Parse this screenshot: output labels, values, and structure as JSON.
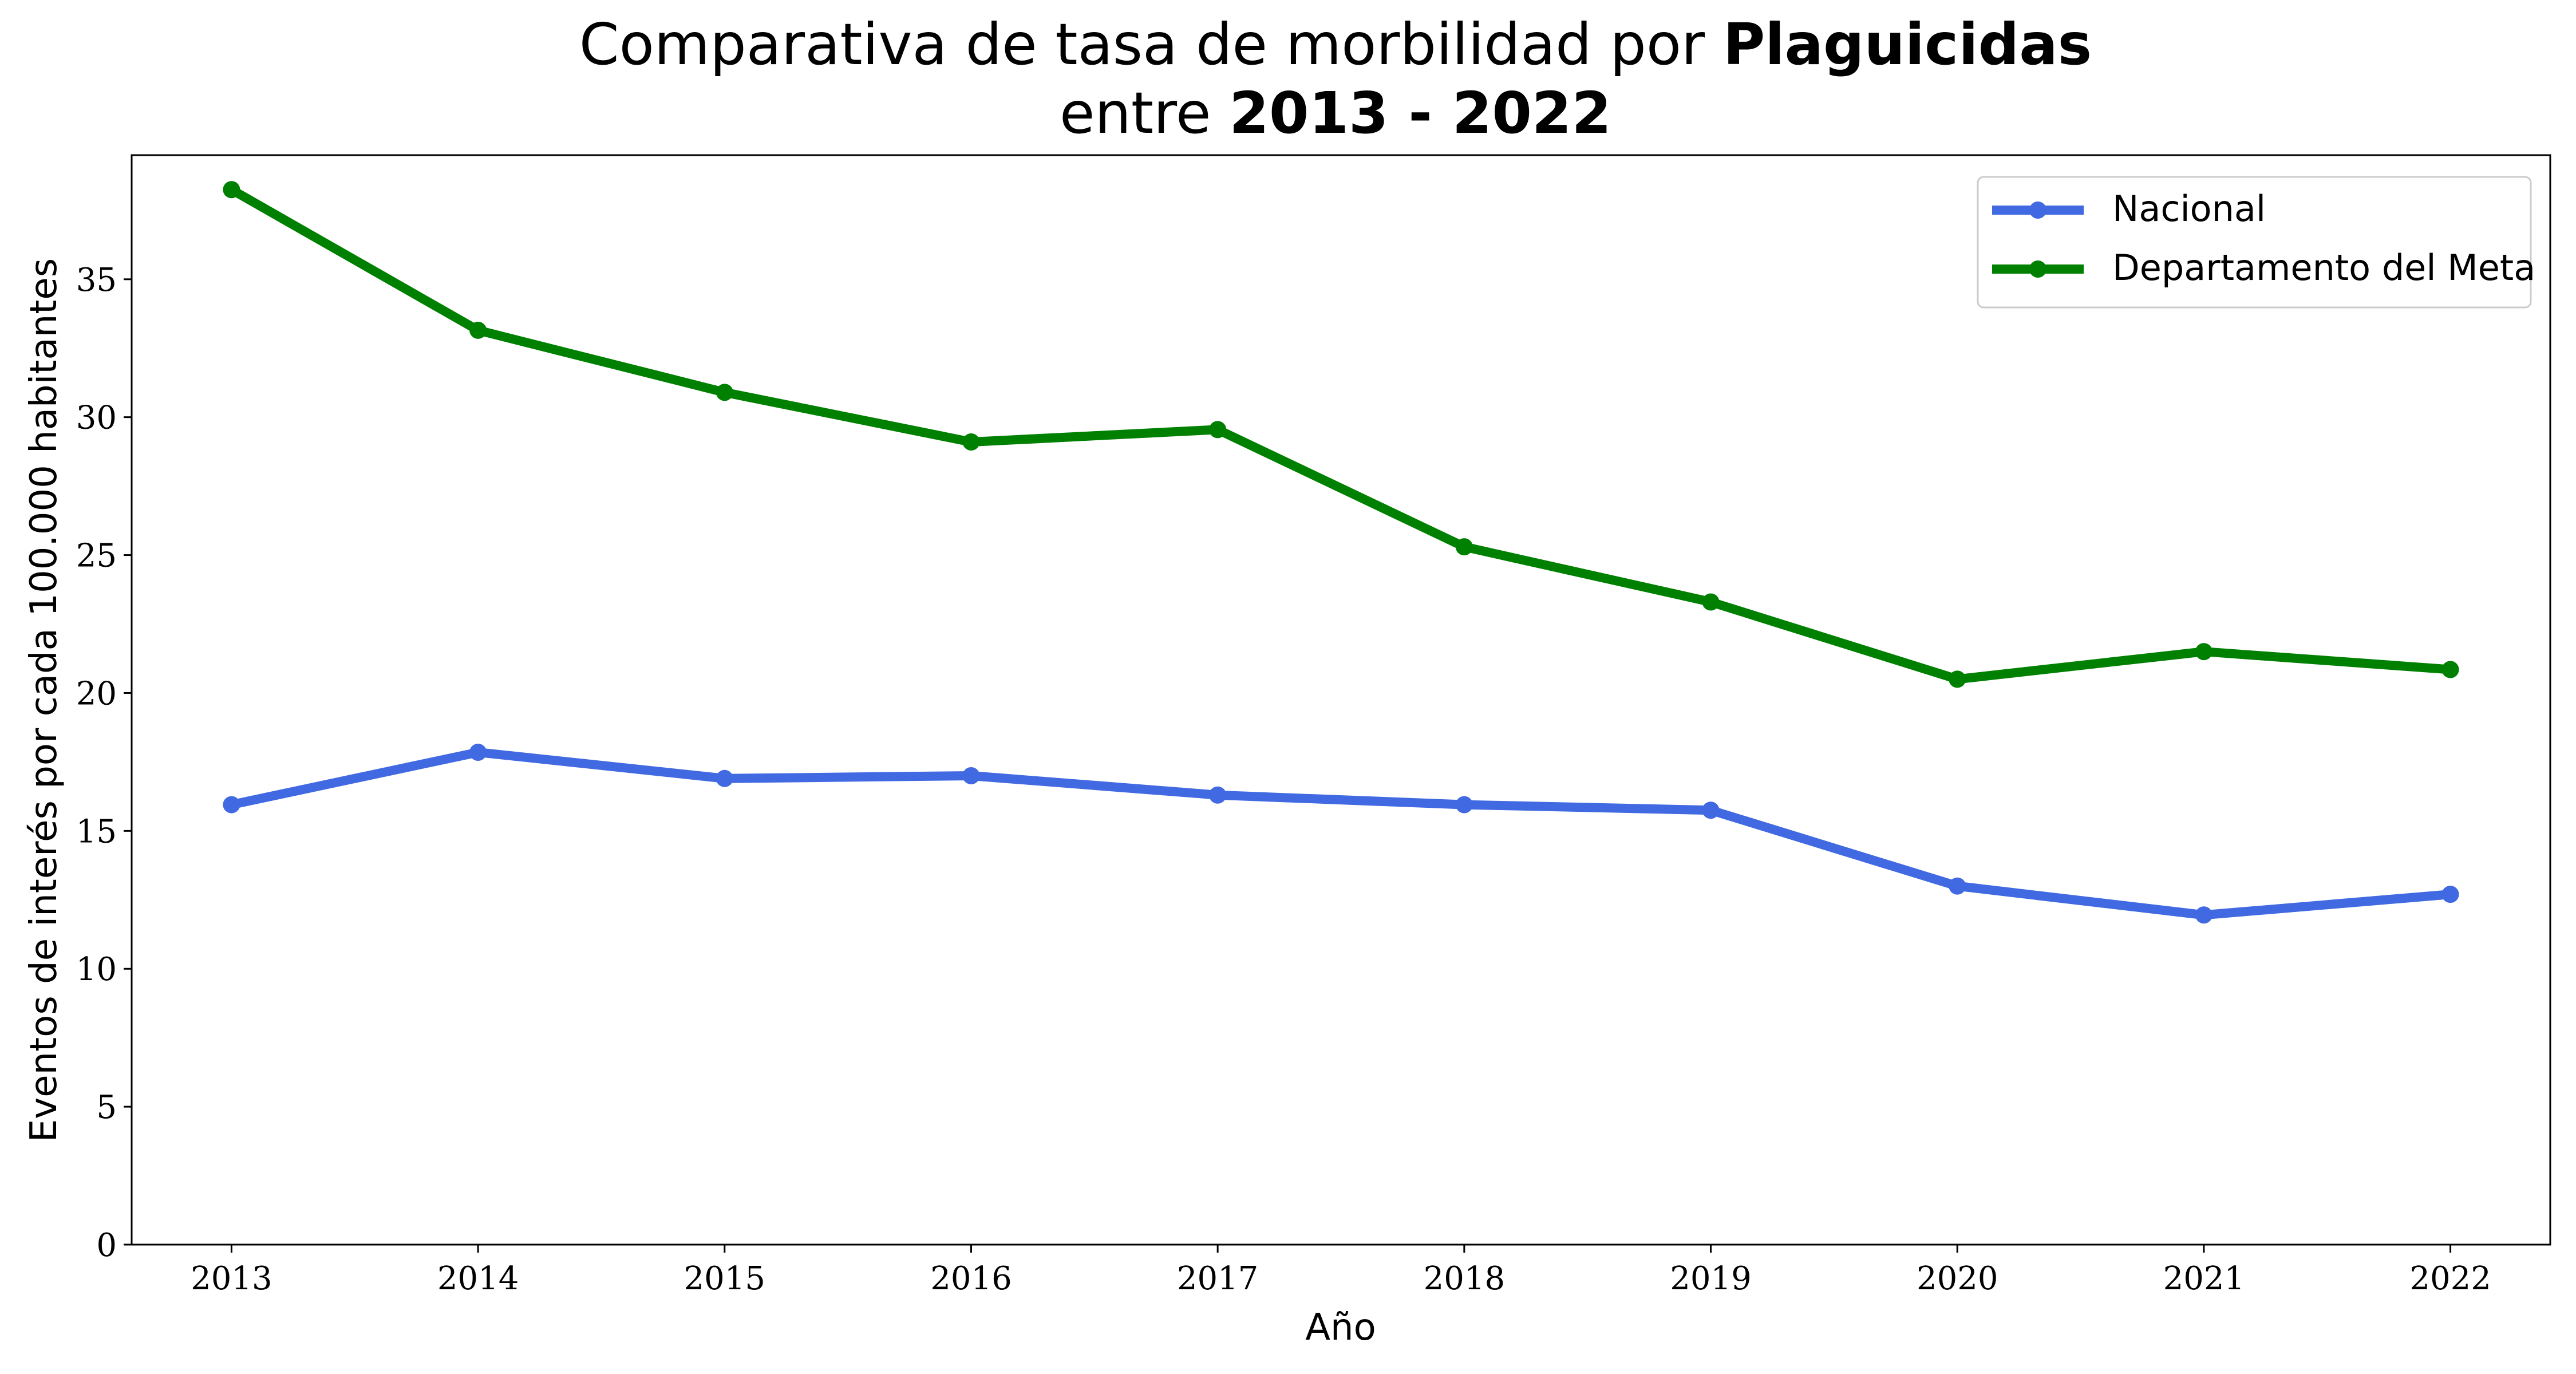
{
  "chart_data": {
    "type": "line",
    "title": {
      "line1_prefix": "Comparativa de tasa de morbilidad por ",
      "line1_bold": "Plaguicidas",
      "line2_prefix": "entre ",
      "line2_bold": "2013 - 2022"
    },
    "xlabel": "Año",
    "ylabel": "Eventos de interés por cada 100.000 habitantes",
    "x": [
      2013,
      2014,
      2015,
      2016,
      2017,
      2018,
      2019,
      2020,
      2021,
      2022
    ],
    "ylim": [
      0,
      39.5
    ],
    "yticks": [
      0,
      5,
      10,
      15,
      20,
      25,
      30,
      35
    ],
    "grid": false,
    "legend_position": "top-right",
    "series": [
      {
        "name": "Nacional",
        "color": "#4169E1",
        "values": [
          15.95,
          17.85,
          16.9,
          17.0,
          16.3,
          15.95,
          15.75,
          13.0,
          11.95,
          12.7
        ]
      },
      {
        "name": "Departamento del Meta",
        "color": "#008000",
        "values": [
          38.25,
          33.15,
          30.9,
          29.1,
          29.55,
          25.3,
          23.3,
          20.5,
          21.5,
          20.85
        ]
      }
    ]
  }
}
